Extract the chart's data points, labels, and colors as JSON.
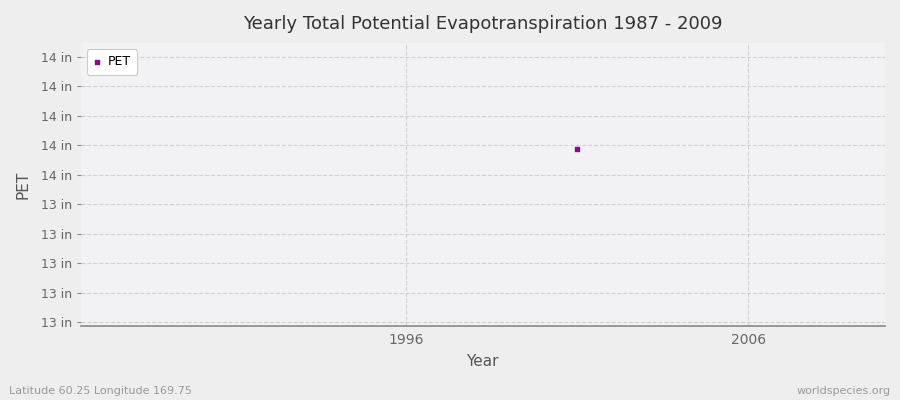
{
  "title": "Yearly Total Potential Evapotranspiration 1987 - 2009",
  "xlabel": "Year",
  "ylabel": "PET",
  "x_data": [
    2001
  ],
  "y_data": [
    13.78
  ],
  "marker_color": "#990099",
  "legend_label": "PET",
  "xlim": [
    1986.5,
    2010
  ],
  "ylim": [
    12.88,
    14.32
  ],
  "yticks": [
    14.25,
    14.1,
    13.95,
    13.8,
    13.65,
    13.5,
    13.35,
    13.2,
    13.05,
    12.9
  ],
  "ytick_labels": [
    "14 in",
    "14 in",
    "14 in",
    "14 in",
    "14 in",
    "13 in",
    "13 in",
    "13 in",
    "13 in",
    "13 in"
  ],
  "xticks": [
    1996,
    2006
  ],
  "bg_color": "#eeeeee",
  "plot_bg_color": "#f2f2f5",
  "grid_color": "#d0d0d0",
  "subtitle_left": "Latitude 60.25 Longitude 169.75",
  "subtitle_right": "worldspecies.org"
}
